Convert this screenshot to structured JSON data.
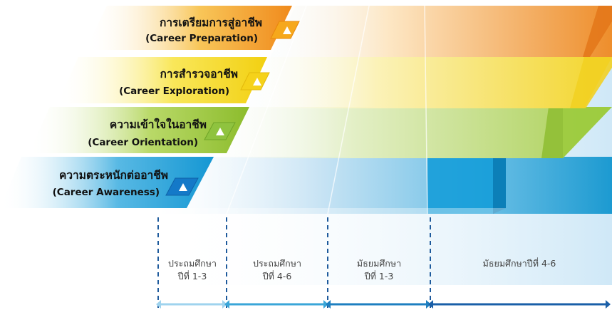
{
  "levels": [
    {
      "thai": "การเตรียมการสู่อาชีพ",
      "english": "(Career Preparation)",
      "color": "#f0a419"
    },
    {
      "thai": "การสำรวจอาชีพ",
      "english": "(Career Exploration)",
      "color": "#f4d21f"
    },
    {
      "thai": "ความเข้าใจในอาชีพ",
      "english": "(Career Orientation)",
      "color": "#8cc43f"
    },
    {
      "thai": "ความตระหนักต่ออาชีพ",
      "english": "(Career Awareness)",
      "color": "#1aa1d8"
    }
  ],
  "columns": [
    {
      "line1": "ประถมศึกษา",
      "line2": "ปีที่ 1-3"
    },
    {
      "line1": "ประถมศึกษา",
      "line2": "ปีที่ 4-6"
    },
    {
      "line1": "มัธยมศึกษา",
      "line2": "ปีที่ 1-3"
    },
    {
      "line1": "มัธยมศึกษาปีที่ 4-6",
      "line2": ""
    }
  ],
  "arrow_colors": [
    "#9fd3ee",
    "#3aa6d8",
    "#1e7fc0",
    "#1a5fa8"
  ]
}
